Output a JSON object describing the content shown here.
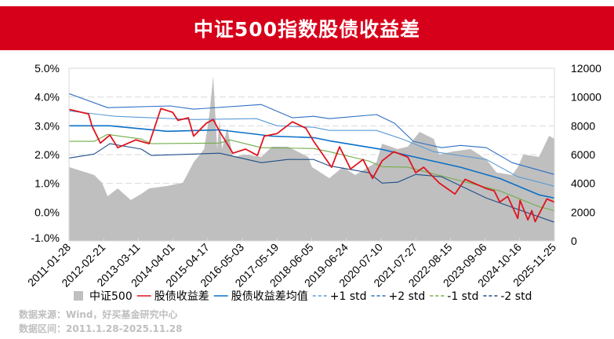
{
  "title": "中证500指数股债收益差",
  "footer": {
    "source": "数据来源：Wind，好买基金研究中心",
    "period": "数据区间：2011.1.28-2025.11.28"
  },
  "chart_data": {
    "type": "line",
    "title": "中证500指数股债收益差",
    "x_range": [
      2011.07,
      2025.91
    ],
    "x_tick_labels": [
      "2011-01-28",
      "2012-02-21",
      "2013-03-11",
      "2014-04-01",
      "2015-04-17",
      "2016-05-03",
      "2017-05-19",
      "2018-06-05",
      "2019-06-24",
      "2020-07-10",
      "2021-07-27",
      "2022-08-15",
      "2023-09-06",
      "2024-10-16",
      "2025-11-25"
    ],
    "y_left": {
      "range": [
        -1.0,
        5.0
      ],
      "ticks": [
        "-1.0%",
        "0.0%",
        "1.0%",
        "2.0%",
        "3.0%",
        "4.0%",
        "5.0%"
      ]
    },
    "y_right": {
      "range": [
        0,
        12000
      ],
      "ticks": [
        "0",
        "2000",
        "4000",
        "6000",
        "8000",
        "10000",
        "12000"
      ]
    },
    "grid": true,
    "legend_position": "bottom",
    "colors": {
      "csi500": "#bfbfbf",
      "spread": "#e0141e",
      "mean": "#0a70c8",
      "p1": "#5b9bd5",
      "p2": "#2e6fc4",
      "m1": "#70ad47",
      "m2": "#1f4e89"
    },
    "series": [
      {
        "key": "csi500",
        "name": "中证500",
        "type": "area",
        "axis": "right",
        "x": [
          2011.07,
          2011.84,
          2012.08,
          2012.25,
          2012.56,
          2012.96,
          2013.28,
          2013.52,
          2014.07,
          2014.55,
          2014.88,
          2015.2,
          2015.36,
          2015.48,
          2015.6,
          2015.67,
          2015.75,
          2015.91,
          2016.08,
          2016.47,
          2016.95,
          2017.28,
          2017.76,
          2018.38,
          2018.5,
          2019.03,
          2019.44,
          2019.82,
          2020.47,
          2020.64,
          2021.12,
          2021.43,
          2021.79,
          2022.22,
          2022.39,
          2022.8,
          2023.35,
          2023.83,
          2024.14,
          2024.62,
          2024.79,
          2024.96,
          2025.44,
          2025.75,
          2025.91
        ],
        "y": [
          5130,
          4580,
          4040,
          3110,
          3650,
          2840,
          3270,
          3650,
          3820,
          4040,
          5460,
          6380,
          8730,
          11460,
          6380,
          8400,
          6380,
          7860,
          5840,
          6000,
          5840,
          6550,
          6550,
          5840,
          5130,
          4360,
          5130,
          4580,
          5460,
          6760,
          6380,
          6550,
          7580,
          7090,
          6000,
          6220,
          6380,
          5670,
          4750,
          4580,
          5130,
          6000,
          5840,
          7310,
          7090
        ]
      },
      {
        "key": "spread",
        "name": "股债收益差",
        "type": "line",
        "axis": "left",
        "x": [
          2011.07,
          2011.67,
          2011.77,
          2012.03,
          2012.32,
          2012.56,
          2013.11,
          2013.52,
          2013.88,
          2014.24,
          2014.4,
          2014.72,
          2014.88,
          2015.27,
          2015.48,
          2015.67,
          2016.08,
          2016.47,
          2016.83,
          2017.04,
          2017.43,
          2017.9,
          2018.31,
          2018.55,
          2019.1,
          2019.34,
          2019.68,
          2020.06,
          2020.35,
          2020.64,
          2021.0,
          2021.43,
          2021.67,
          2021.91,
          2022.39,
          2022.87,
          2023.18,
          2023.83,
          2024.07,
          2024.24,
          2024.48,
          2024.79,
          2024.86,
          2025.1,
          2025.22,
          2025.32,
          2025.68,
          2025.91
        ],
        "y": [
          3.57,
          3.41,
          3.0,
          2.4,
          2.68,
          2.24,
          2.51,
          2.38,
          3.6,
          3.47,
          3.19,
          3.28,
          2.64,
          3.09,
          3.22,
          2.81,
          2.05,
          2.19,
          1.97,
          2.64,
          2.73,
          3.14,
          2.92,
          2.46,
          1.56,
          2.27,
          1.5,
          1.83,
          1.17,
          1.78,
          2.1,
          1.91,
          1.37,
          1.56,
          1.01,
          0.63,
          1.14,
          0.82,
          0.74,
          0.35,
          0.55,
          -0.22,
          0.41,
          -0.27,
          0.05,
          -0.33,
          0.46,
          0.35
        ]
      },
      {
        "key": "mean",
        "name": "股债收益差均值",
        "type": "line",
        "axis": "left",
        "x": [
          2011.07,
          2012.32,
          2014.07,
          2015.67,
          2017.28,
          2018.55,
          2019.03,
          2020.64,
          2021.43,
          2023.04,
          2024.24,
          2025.44,
          2025.91
        ],
        "y": [
          3.0,
          3.0,
          2.81,
          2.86,
          2.64,
          2.59,
          2.48,
          2.18,
          1.97,
          1.56,
          1.17,
          0.6,
          0.49
        ]
      },
      {
        "key": "p1",
        "name": "+1 std",
        "type": "line",
        "axis": "left",
        "dash": true,
        "x": [
          2011.07,
          2012.48,
          2014.88,
          2016.8,
          2017.43,
          2018.55,
          2019.03,
          2020.47,
          2021.26,
          2022.22,
          2023.83,
          2024.79,
          2025.91
        ],
        "y": [
          3.52,
          3.33,
          3.22,
          3.25,
          3.0,
          2.95,
          2.84,
          2.84,
          2.54,
          2.1,
          1.83,
          1.23,
          0.9
        ]
      },
      {
        "key": "p2",
        "name": "+2 std",
        "type": "line",
        "axis": "left",
        "dash": true,
        "x": [
          2011.07,
          2012.25,
          2014.16,
          2014.88,
          2016.95,
          2017.9,
          2018.55,
          2019.03,
          2020.47,
          2021.02,
          2021.6,
          2022.46,
          2023.04,
          2023.83,
          2024.62,
          2025.91
        ],
        "y": [
          4.12,
          3.63,
          3.69,
          3.58,
          3.74,
          3.28,
          3.33,
          3.25,
          3.39,
          3.09,
          2.46,
          2.24,
          2.32,
          2.24,
          1.72,
          1.31
        ]
      },
      {
        "key": "m1",
        "name": "-1 std",
        "type": "line",
        "axis": "left",
        "dash": true,
        "x": [
          2011.07,
          2011.84,
          2012.25,
          2013.28,
          2013.59,
          2015.67,
          2015.99,
          2016.95,
          2018.55,
          2019.03,
          2020.23,
          2020.64,
          2021.43,
          2023.04,
          2024.24,
          2025.44,
          2025.91
        ],
        "y": [
          2.46,
          2.46,
          2.7,
          2.54,
          2.38,
          2.4,
          2.51,
          2.24,
          2.21,
          2.1,
          1.78,
          1.58,
          1.56,
          1.09,
          0.74,
          0.19,
          0.05
        ]
      },
      {
        "key": "m2",
        "name": "-2 std",
        "type": "line",
        "axis": "left",
        "dash": true,
        "x": [
          2011.07,
          2011.84,
          2012.32,
          2013.28,
          2013.59,
          2015.67,
          2016.95,
          2017.76,
          2018.55,
          2019.03,
          2020.23,
          2020.64,
          2021.12,
          2021.67,
          2022.46,
          2023.83,
          2025.03,
          2025.91
        ],
        "y": [
          1.88,
          2.02,
          2.38,
          2.19,
          1.97,
          2.05,
          1.72,
          1.83,
          1.83,
          1.61,
          1.37,
          1.01,
          1.04,
          1.31,
          1.23,
          0.49,
          0.0,
          -0.35
        ]
      }
    ],
    "legend": [
      {
        "key": "csi500",
        "label": "中证500",
        "style": "box"
      },
      {
        "key": "spread",
        "label": "股债收益差",
        "style": "solid"
      },
      {
        "key": "mean",
        "label": "股债收益差均值",
        "style": "solid"
      },
      {
        "key": "p1",
        "label": "+1 std",
        "style": "dash"
      },
      {
        "key": "p2",
        "label": "+2 std",
        "style": "dash"
      },
      {
        "key": "m1",
        "label": "-1 std",
        "style": "dash"
      },
      {
        "key": "m2",
        "label": "-2 std",
        "style": "dash"
      }
    ]
  }
}
